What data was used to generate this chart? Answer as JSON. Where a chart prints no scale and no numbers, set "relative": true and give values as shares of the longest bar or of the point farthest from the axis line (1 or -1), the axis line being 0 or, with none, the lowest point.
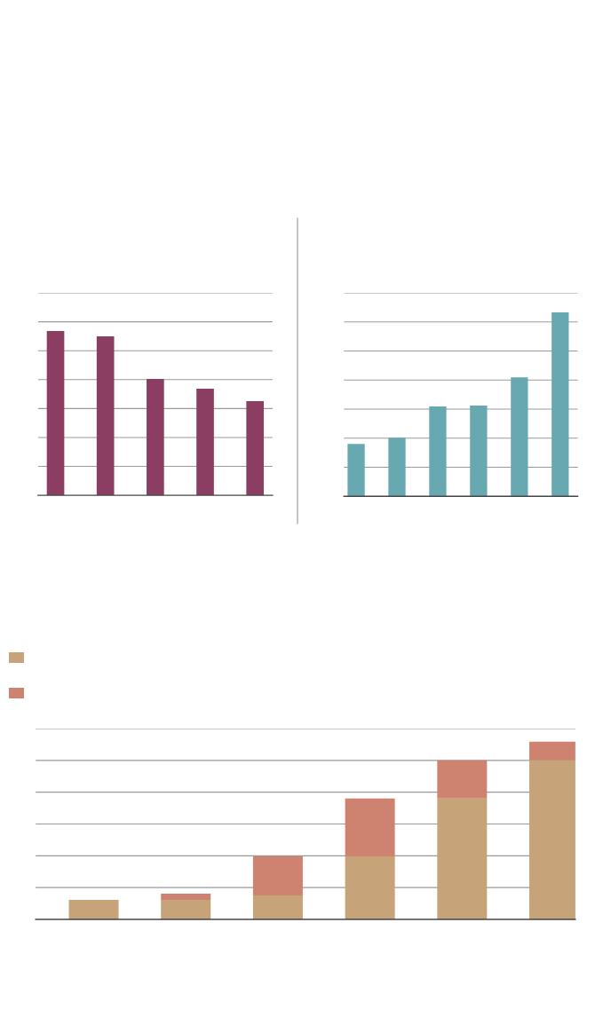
{
  "chart_data": [
    {
      "type": "bar",
      "relative": true,
      "categories": [
        null,
        null,
        null,
        null,
        null
      ],
      "ref_lines": [
        {
          "axis": "y",
          "value": 0.176
        },
        {
          "axis": "y",
          "value": 0.352
        },
        {
          "axis": "y",
          "value": 0.528
        },
        {
          "axis": "y",
          "value": 0.704
        },
        {
          "axis": "y",
          "value": 0.88
        },
        {
          "axis": "y",
          "value": 1.056
        },
        {
          "axis": "y",
          "value": 1.232
        }
      ],
      "series": [
        {
          "color": "#8b3d62",
          "values": [
            1,
            0.968,
            0.708,
            0.649,
            0.573
          ]
        }
      ]
    },
    {
      "type": "bar",
      "relative": true,
      "categories": [
        null,
        null,
        null,
        null,
        null,
        null
      ],
      "ref_lines": [
        {
          "axis": "y",
          "value": 0.158
        },
        {
          "axis": "y",
          "value": 0.316
        },
        {
          "axis": "y",
          "value": 0.474
        },
        {
          "axis": "y",
          "value": 0.632
        },
        {
          "axis": "y",
          "value": 0.79
        },
        {
          "axis": "y",
          "value": 0.948
        },
        {
          "axis": "y",
          "value": 1.106
        }
      ],
      "series": [
        {
          "color": "#67a8b1",
          "values": [
            0.285,
            0.319,
            0.488,
            0.493,
            0.647,
            1
          ]
        }
      ]
    },
    {
      "type": "bar",
      "relative": true,
      "stacked": true,
      "categories": [
        null,
        null,
        null,
        null,
        null,
        null
      ],
      "ref_lines": [
        {
          "axis": "y",
          "value": 0.179
        },
        {
          "axis": "y",
          "value": 0.358
        },
        {
          "axis": "y",
          "value": 0.537
        },
        {
          "axis": "y",
          "value": 0.716
        },
        {
          "axis": "y",
          "value": 0.895
        },
        {
          "axis": "y",
          "value": 1.074
        }
      ],
      "series": [
        {
          "color": "#c6a378",
          "values": [
            0.11,
            0.11,
            0.135,
            0.355,
            0.68,
            0.895
          ]
        },
        {
          "color": "#cd8370",
          "values": [
            0,
            0.035,
            0.22,
            0.325,
            0.215,
            0.105
          ]
        }
      ]
    }
  ]
}
